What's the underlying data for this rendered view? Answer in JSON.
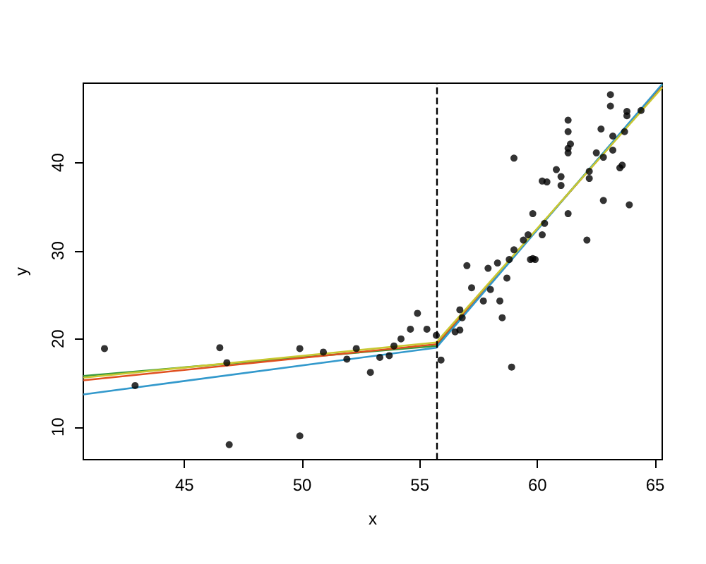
{
  "chart_data": {
    "type": "scatter",
    "xlabel": "x",
    "ylabel": "y",
    "xlim": [
      40.7,
      65.3
    ],
    "ylim": [
      6.3,
      49.0
    ],
    "xticks": [
      45,
      50,
      55,
      60,
      65
    ],
    "yticks": [
      10,
      20,
      30,
      40
    ],
    "grid": false,
    "marker": "circle",
    "ref_lines": [
      {
        "axis": "x",
        "value": 55.7,
        "line_style": "dashed",
        "color": "#000000"
      }
    ],
    "series": [
      {
        "color": "#000000",
        "x": [
          41.6,
          42.9,
          46.5,
          46.8,
          46.9,
          49.9,
          49.9,
          50.9,
          51.9,
          52.3,
          52.9,
          53.3,
          53.7,
          53.9,
          54.2,
          54.6,
          54.9,
          55.3,
          55.7,
          55.9,
          56.5,
          56.7,
          56.7,
          56.8,
          57.0,
          57.2,
          57.7,
          57.9,
          58.0,
          58.3,
          58.4,
          58.5,
          58.7,
          58.8,
          58.9,
          59.0,
          59.0,
          59.4,
          59.6,
          59.7,
          59.8,
          59.9,
          59.8,
          60.2,
          60.3,
          60.2,
          60.4,
          60.8,
          61.0,
          61.0,
          61.3,
          61.3,
          61.3,
          61.4,
          61.3,
          61.3,
          62.1,
          62.2,
          62.2,
          62.5,
          62.7,
          62.8,
          62.8,
          63.1,
          63.1,
          63.2,
          63.2,
          63.5,
          63.6,
          63.7,
          63.8,
          63.8,
          63.9,
          64.4
        ],
        "values": [
          18.9,
          14.7,
          19.0,
          17.3,
          8.0,
          18.9,
          9.0,
          18.5,
          17.7,
          18.9,
          16.2,
          17.9,
          18.1,
          19.2,
          20.0,
          21.1,
          22.9,
          21.1,
          20.4,
          17.6,
          20.8,
          21.0,
          23.3,
          22.4,
          28.3,
          25.8,
          24.3,
          28.0,
          25.6,
          28.6,
          24.3,
          22.4,
          26.9,
          29.0,
          16.8,
          30.1,
          40.5,
          31.2,
          31.8,
          29.0,
          29.1,
          29.0,
          34.2,
          31.8,
          33.1,
          37.9,
          37.8,
          39.2,
          37.4,
          38.4,
          34.2,
          41.1,
          41.6,
          42.1,
          43.5,
          44.8,
          31.2,
          39.0,
          38.2,
          41.1,
          43.8,
          35.7,
          40.6,
          47.7,
          46.4,
          43.0,
          41.4,
          39.4,
          39.7,
          43.5,
          45.8,
          45.3,
          35.2,
          45.9
        ]
      },
      {
        "type": "line",
        "marker": "none",
        "line_style": "solid",
        "color": "#3a9a3a",
        "x": [
          40.7,
          55.7,
          65.3
        ],
        "values": [
          15.8,
          19.2,
          48.8
        ]
      },
      {
        "type": "line",
        "marker": "none",
        "line_style": "solid",
        "color": "#e05020",
        "x": [
          40.7,
          55.7,
          65.3
        ],
        "values": [
          15.3,
          19.4,
          48.6
        ]
      },
      {
        "type": "line",
        "marker": "none",
        "line_style": "solid",
        "color": "#3399cc",
        "x": [
          40.7,
          55.7,
          65.3
        ],
        "values": [
          13.7,
          19.0,
          48.9
        ]
      },
      {
        "type": "line",
        "marker": "none",
        "line_style": "solid",
        "color": "#c8c832",
        "x": [
          40.7,
          55.7,
          65.3
        ],
        "values": [
          15.6,
          19.6,
          48.5
        ]
      }
    ]
  }
}
